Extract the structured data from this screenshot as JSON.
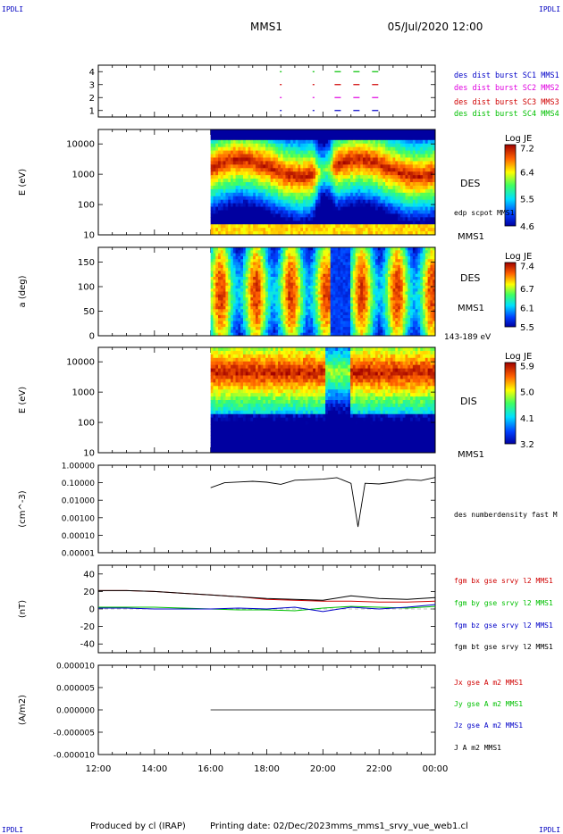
{
  "corner": {
    "tl": "IPDLI",
    "tr": "IPDLI",
    "bl": "IPDLI",
    "br": "IPDLI"
  },
  "header": {
    "spacecraft": "MMS1",
    "datetime": "05/Jul/2020 12:00"
  },
  "footer": {
    "produced_by": "Produced by cl (IRAP)",
    "printing_date": "Printing date: 02/Dec/2023",
    "filename": "mms_mms1_srvy_vue_web1.cl"
  },
  "colors": {
    "mms1": "#0000c8",
    "mms2": "#e000e0",
    "mms3": "#d00000",
    "mms4": "#00c000",
    "bx": "#d00000",
    "by": "#00c000",
    "bz": "#0000c8",
    "bt": "#000000"
  },
  "chart_data": [
    {
      "type": "scatter",
      "name": "burst availability",
      "yticks": [
        "1",
        "2",
        "3",
        "4"
      ],
      "ylim": [
        0.5,
        4.5
      ],
      "series": [
        {
          "name": "des dist burst SC1 MMS1",
          "y": 1,
          "x": [
            "18:28",
            "19:38",
            "20:25",
            "21:05",
            "21:45"
          ]
        },
        {
          "name": "des dist burst SC2 MMS2",
          "y": 2,
          "x": [
            "18:28",
            "19:38",
            "20:25",
            "21:05",
            "21:45"
          ]
        },
        {
          "name": "des dist burst SC3 MMS3",
          "y": 3,
          "x": [
            "18:28",
            "19:38",
            "20:25",
            "21:05",
            "21:45"
          ]
        },
        {
          "name": "des dist burst SC4 MMS4",
          "y": 4,
          "x": [
            "18:28",
            "19:38",
            "20:25",
            "21:05",
            "21:45"
          ]
        }
      ]
    },
    {
      "type": "heatmap",
      "name": "DES energy spectrogram",
      "ylabel": "E (eV)",
      "yscale": "log",
      "ylim": [
        10,
        30000
      ],
      "yticks": [
        "10",
        "100",
        "1000",
        "10000"
      ],
      "label": "DES",
      "label2": "edp scpot MMS1",
      "label3": "MMS1",
      "colorbar": {
        "title": "Log JE",
        "ticks": [
          "7.2",
          "6.4",
          "5.5",
          "4.6"
        ],
        "range": [
          4.6,
          7.3
        ]
      },
      "data_start": "16:00"
    },
    {
      "type": "heatmap",
      "name": "DES pitch angle",
      "ylabel": "a (deg)",
      "ylim": [
        0,
        180
      ],
      "yticks": [
        "0",
        "50",
        "100",
        "150"
      ],
      "label": "DES",
      "label2": "MMS1",
      "label3": "143-189 eV",
      "colorbar": {
        "title": "Log JE",
        "ticks": [
          "7.4",
          "6.7",
          "6.1",
          "5.5"
        ],
        "range": [
          5.5,
          7.5
        ]
      },
      "data_start": "16:00"
    },
    {
      "type": "heatmap",
      "name": "DIS energy spectrogram",
      "ylabel": "E (eV)",
      "yscale": "log",
      "ylim": [
        10,
        30000
      ],
      "yticks": [
        "10",
        "100",
        "1000",
        "10000"
      ],
      "label": "DIS",
      "label3": "MMS1",
      "colorbar": {
        "title": "Log JE",
        "ticks": [
          "5.9",
          "5.0",
          "4.1",
          "3.2"
        ],
        "range": [
          3.2,
          6.0
        ]
      },
      "data_start": "16:00"
    },
    {
      "type": "line",
      "name": "density",
      "ylabel": "(cm^-3)",
      "yscale": "log",
      "ylim": [
        1e-05,
        1.0
      ],
      "yticks": [
        "1.00000",
        "0.10000",
        "0.01000",
        "0.00100",
        "0.00010",
        "0.00001"
      ],
      "series": [
        {
          "name": "des numberdensity fast M",
          "x": [
            "16:00",
            "16:30",
            "17:00",
            "17:30",
            "18:00",
            "18:30",
            "19:00",
            "19:30",
            "20:00",
            "20:30",
            "21:00",
            "21:15",
            "21:30",
            "22:00",
            "22:30",
            "23:00",
            "23:30",
            "00:00"
          ],
          "y": [
            0.06,
            0.1,
            0.13,
            0.11,
            0.12,
            0.08,
            0.12,
            0.15,
            0.18,
            0.2,
            0.1,
            0.0003,
            0.08,
            0.09,
            0.1,
            0.15,
            0.14,
            0.22
          ]
        }
      ]
    },
    {
      "type": "line",
      "name": "magnetic field",
      "ylabel": "(nT)",
      "ylim": [
        -50,
        50
      ],
      "yticks": [
        "40",
        "20",
        "0",
        "-20",
        "-40"
      ],
      "x": [
        "12:00",
        "13:00",
        "14:00",
        "15:00",
        "16:00",
        "17:00",
        "18:00",
        "19:00",
        "20:00",
        "21:00",
        "22:00",
        "23:00",
        "00:00"
      ],
      "series": [
        {
          "name": "fgm bx gse srvy l2 MMS1",
          "y": [
            21,
            21,
            20,
            18,
            16,
            14,
            11,
            10,
            9,
            9,
            8,
            8,
            9
          ]
        },
        {
          "name": "fgm by gse srvy l2 MMS1",
          "y": [
            2,
            2,
            2,
            1,
            0,
            -1,
            -1,
            -2,
            1,
            3,
            2,
            1,
            3
          ]
        },
        {
          "name": "fgm bz gse srvy l2 MMS1",
          "y": [
            1,
            1,
            0,
            0,
            0,
            1,
            0,
            2,
            -3,
            2,
            0,
            2,
            5
          ]
        },
        {
          "name": "fgm bt gse srvy l2 MMS1",
          "y": [
            21,
            21,
            20,
            18,
            16,
            14,
            12,
            11,
            10,
            15,
            12,
            11,
            13
          ]
        }
      ]
    },
    {
      "type": "line",
      "name": "current density",
      "ylabel": "(A/m2)",
      "ylim": [
        -1e-05,
        1e-05
      ],
      "yticks": [
        "0.000010",
        "0.000005",
        "0.000000",
        "-0.000005",
        "-0.000010"
      ],
      "series": [
        {
          "name": "Jx gse A m2 MMS1",
          "y": [
            0,
            0,
            0
          ]
        },
        {
          "name": "Jy gse A m2 MMS1",
          "y": [
            0,
            0,
            0
          ]
        },
        {
          "name": "Jz gse A m2 MMS1",
          "y": [
            0,
            0,
            0
          ]
        },
        {
          "name": "J A m2 MMS1",
          "y": [
            0,
            0,
            0
          ]
        }
      ]
    }
  ],
  "xaxis": {
    "ticks": [
      "12:00",
      "14:00",
      "16:00",
      "18:00",
      "20:00",
      "22:00",
      "00:00"
    ]
  }
}
